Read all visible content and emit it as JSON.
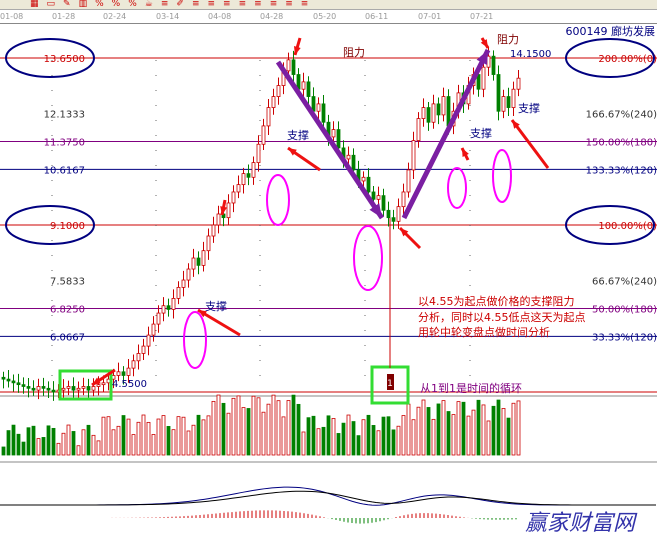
{
  "toolbar": {
    "icons": [
      "grid-icon",
      "window-icon",
      "draw-icon",
      "chart-icon",
      "percent-icon",
      "percent-icon",
      "percent-icon",
      "cup-icon",
      "line-icon",
      "pen-icon",
      "line-icon",
      "line-icon",
      "line-icon",
      "line-icon",
      "line-icon",
      "line-icon",
      "line-icon",
      "line-icon"
    ],
    "labels": [
      "1%",
      "%",
      "%"
    ]
  },
  "dates": [
    "01-08",
    "01-28",
    "02-24",
    "03-14",
    "04-08",
    "04-28",
    "05-20",
    "06-11",
    "07-01",
    "07-21"
  ],
  "stock": {
    "code": "600149",
    "name": "廊坊发展",
    "high_label": "14.1500",
    "low_label": "4.5500"
  },
  "chart_data": {
    "type": "candlestick",
    "ylim": [
      4.2,
      14.3
    ],
    "closes": [
      4.9,
      4.85,
      4.8,
      4.75,
      4.7,
      4.65,
      4.6,
      4.7,
      4.65,
      4.6,
      4.55,
      4.6,
      4.65,
      4.7,
      4.6,
      4.65,
      4.7,
      4.6,
      4.7,
      4.75,
      4.8,
      4.9,
      5.0,
      5.1,
      5.0,
      5.2,
      5.4,
      5.6,
      5.8,
      6.1,
      6.4,
      6.7,
      6.9,
      6.8,
      7.1,
      7.4,
      7.6,
      7.9,
      8.2,
      8.0,
      8.4,
      8.8,
      9.1,
      9.4,
      9.3,
      9.7,
      10.0,
      10.2,
      10.5,
      10.4,
      10.8,
      11.3,
      11.8,
      12.3,
      12.6,
      12.9,
      13.3,
      13.6,
      13.2,
      12.8,
      13.0,
      12.6,
      12.2,
      12.4,
      11.9,
      11.5,
      11.7,
      11.2,
      10.9,
      11.0,
      10.6,
      10.3,
      10.4,
      10.0,
      9.8,
      9.9,
      9.5,
      9.3,
      9.2,
      9.6,
      10.0,
      10.6,
      11.4,
      12.0,
      12.3,
      11.9,
      12.4,
      12.1,
      12.6,
      11.8,
      12.2,
      12.7,
      12.4,
      12.9,
      13.2,
      12.8,
      13.4,
      13.7,
      13.2,
      12.2,
      12.6,
      12.3,
      12.8,
      13.1
    ],
    "levels": [
      {
        "price": "13.6500",
        "pct": "200.00%(0)",
        "color": "#cc0000",
        "circled": true
      },
      {
        "price": "12.1333",
        "pct": "166.67%(240)",
        "color": "#999999",
        "circled": false
      },
      {
        "price": "11.3750",
        "pct": "150.00%(180)",
        "color": "#800080",
        "circled": false
      },
      {
        "price": "10.6167",
        "pct": "133.33%(120)",
        "color": "#000080",
        "circled": false
      },
      {
        "price": "9.1000",
        "pct": "100.00%(0)",
        "color": "#cc0000",
        "circled": true
      },
      {
        "price": "7.5833",
        "pct": "66.67%(240)",
        "color": "#999999",
        "circled": false
      },
      {
        "price": "6.8250",
        "pct": "50.00%(180)",
        "color": "#800080",
        "circled": false
      },
      {
        "price": "6.0667",
        "pct": "33.33%(120)",
        "color": "#000080",
        "circled": false
      },
      {
        "price": "4.5500",
        "pct": "",
        "color": "#cc0000",
        "circled": false
      }
    ],
    "up_color": "#cc0000",
    "down_color": "#008000"
  },
  "annotations": {
    "resistance": "阻力",
    "support": "支撑",
    "note1": "以4.55为起点做价格的支撑阻力",
    "note2": "分析，同时以4.55低点这天为起点",
    "note3": "用轮中轮变盘点做时间分析",
    "cycle": "从1到1是时间的循环",
    "marker": "1"
  },
  "watermark": "赢家财富网"
}
